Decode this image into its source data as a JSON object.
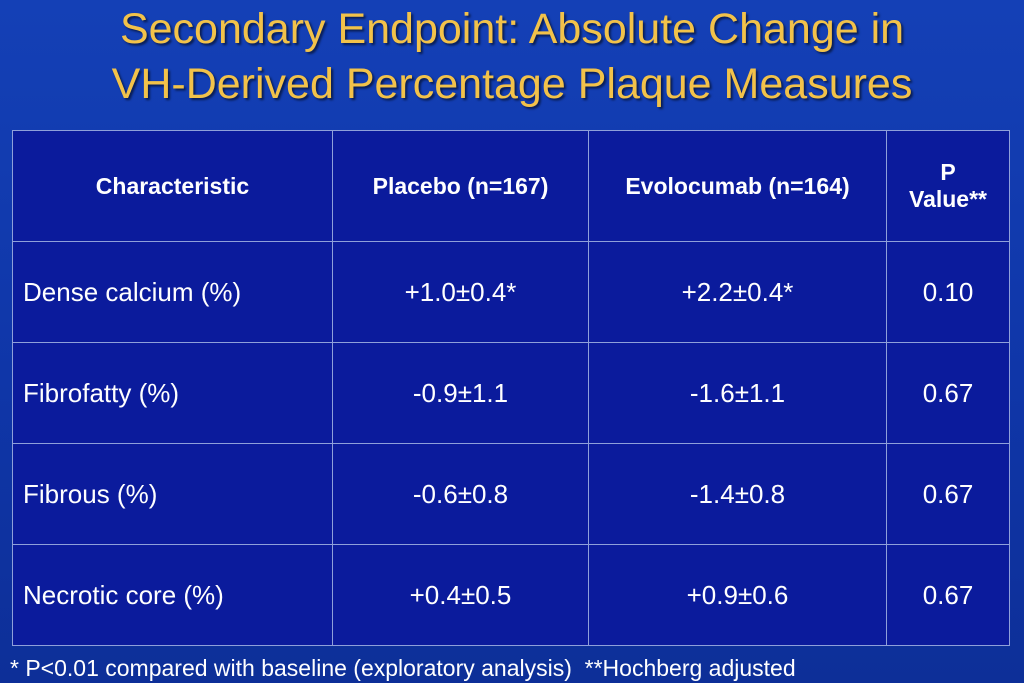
{
  "title": {
    "line1": "Secondary Endpoint: Absolute Change in",
    "line2": "VH-Derived Percentage Plaque Measures"
  },
  "table": {
    "headers": {
      "characteristic": "Characteristic",
      "placebo": "Placebo (n=167)",
      "evolocumab": "Evolocumab (n=164)",
      "p_value_line1": "P",
      "p_value_line2": "Value**"
    },
    "rows": [
      {
        "characteristic": "Dense calcium (%)",
        "placebo": "+1.0±0.4*",
        "evolocumab": "+2.2±0.4*",
        "p_value": "0.10"
      },
      {
        "characteristic": "Fibrofatty (%)",
        "placebo": "-0.9±1.1",
        "evolocumab": "-1.6±1.1",
        "p_value": "0.67"
      },
      {
        "characteristic": "Fibrous (%)",
        "placebo": "-0.6±0.8",
        "evolocumab": "-1.4±0.8",
        "p_value": "0.67"
      },
      {
        "characteristic": "Necrotic core (%)",
        "placebo": "+0.4±0.5",
        "evolocumab": "+0.9±0.6",
        "p_value": "0.67"
      }
    ]
  },
  "footnote": "* P<0.01 compared with baseline (exploratory analysis)  **Hochberg adjusted",
  "colors": {
    "background": "#1440b6",
    "table_fill": "#0b1b9c",
    "title_text": "#f2c24a",
    "body_text": "#ffffff"
  }
}
